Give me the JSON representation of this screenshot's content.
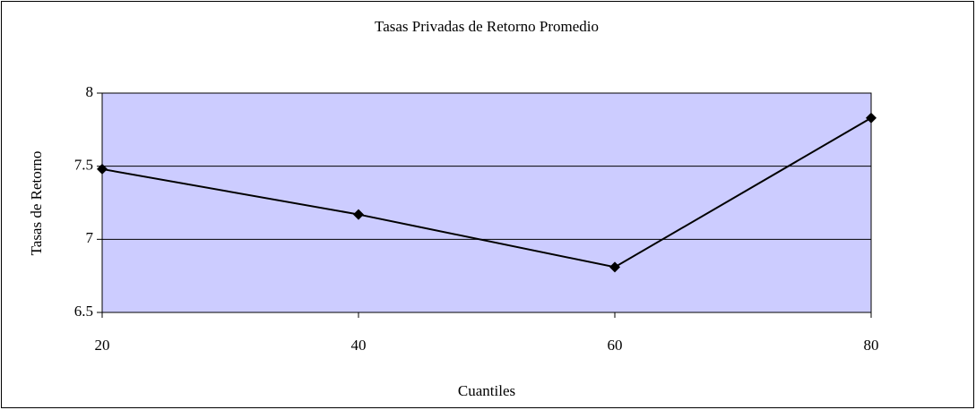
{
  "chart_data": {
    "type": "line",
    "title": "Tasas Privadas de Retorno Promedio",
    "xlabel": "Cuantiles",
    "ylabel": "Tasas de Retorno",
    "x": [
      20,
      40,
      60,
      80
    ],
    "values": [
      7.48,
      7.17,
      6.81,
      7.83
    ],
    "color": "#000000",
    "plot_background": "#ccccff",
    "xlim": [
      20,
      80
    ],
    "xticks": [
      20,
      40,
      60,
      80
    ],
    "ylim": [
      6.5,
      8
    ],
    "yticks": [
      6.5,
      7,
      7.5,
      8
    ],
    "grid": true
  }
}
